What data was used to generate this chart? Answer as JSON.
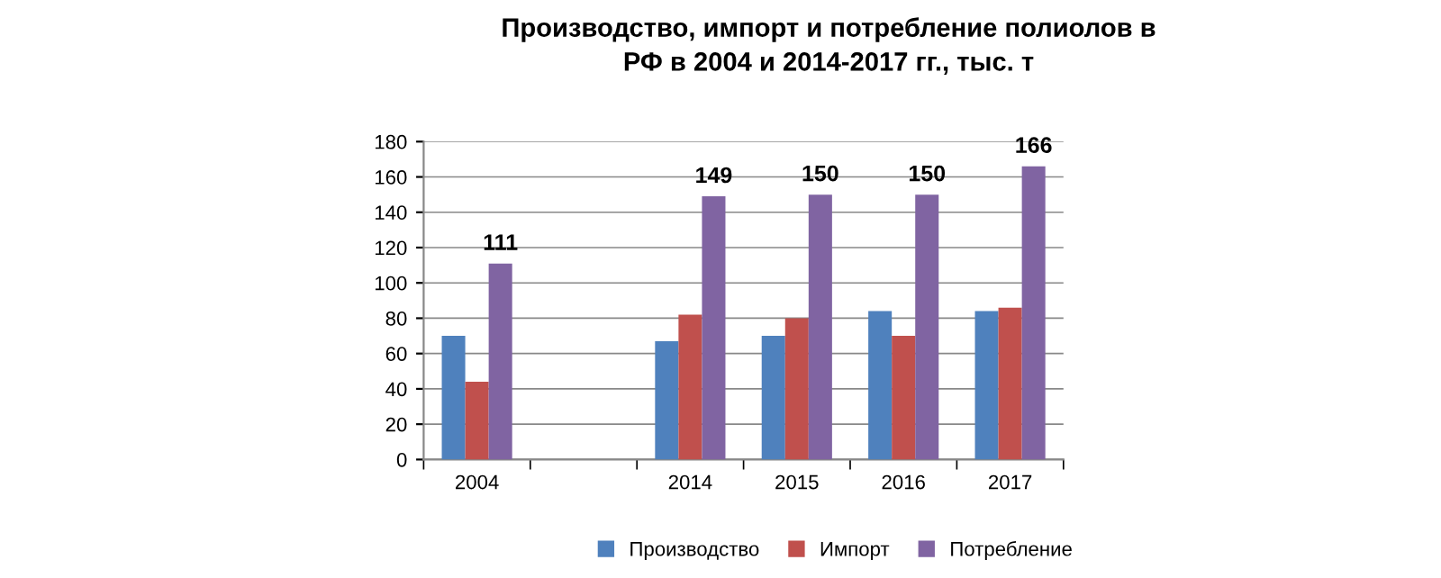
{
  "chart_data": {
    "type": "bar",
    "title": "Производство, импорт и потребление полиолов в\nРФ в 2004 и 2014-2017 гг., тыс. т",
    "categories": [
      "2004",
      null,
      "2014",
      "2015",
      "2016",
      "2017"
    ],
    "series": [
      {
        "name": "Производство",
        "color": "#4f81bd",
        "values": [
          70,
          null,
          67,
          70,
          84,
          84
        ]
      },
      {
        "name": "Импорт",
        "color": "#c0504d",
        "values": [
          44,
          null,
          82,
          80,
          70,
          86
        ]
      },
      {
        "name": "Потребление",
        "color": "#8064a2",
        "values": [
          111,
          null,
          149,
          150,
          150,
          166
        ],
        "value_labels": [
          "111",
          null,
          "149",
          "150",
          "150",
          "166"
        ]
      }
    ],
    "ylim": [
      0,
      180
    ],
    "yticks": [
      0,
      20,
      40,
      60,
      80,
      100,
      120,
      140,
      160,
      180
    ],
    "grid": "y",
    "legend": "bottom"
  }
}
